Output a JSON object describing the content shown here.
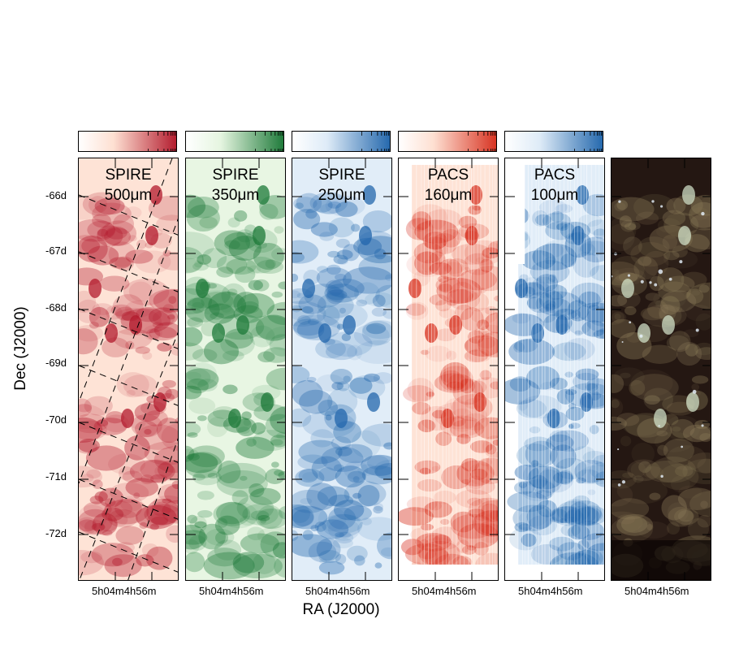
{
  "figure": {
    "ylabel": "Dec (J2000)",
    "xlabel": "RA (J2000)",
    "dec_ticks": [
      "-66d",
      "-67d",
      "-68d",
      "-69d",
      "-70d",
      "-71d",
      "-72d"
    ],
    "ra_tick_label": "5h04m4h56m"
  },
  "panels": [
    {
      "instrument": "SPIRE",
      "wavelength": "500μm",
      "color": "#b2182b",
      "light": "#fee0d2"
    },
    {
      "instrument": "SPIRE",
      "wavelength": "350μm",
      "color": "#1b7837",
      "light": "#e5f5e0"
    },
    {
      "instrument": "SPIRE",
      "wavelength": "250μm",
      "color": "#2166ac",
      "light": "#deebf7"
    },
    {
      "instrument": "PACS",
      "wavelength": "160μm",
      "color": "#d7301f",
      "light": "#fee0d2"
    },
    {
      "instrument": "PACS",
      "wavelength": "100μm",
      "color": "#2166ac",
      "light": "#deebf7"
    },
    {
      "instrument": "",
      "wavelength": "",
      "color": "#3a2a20",
      "light": "#120806"
    }
  ]
}
